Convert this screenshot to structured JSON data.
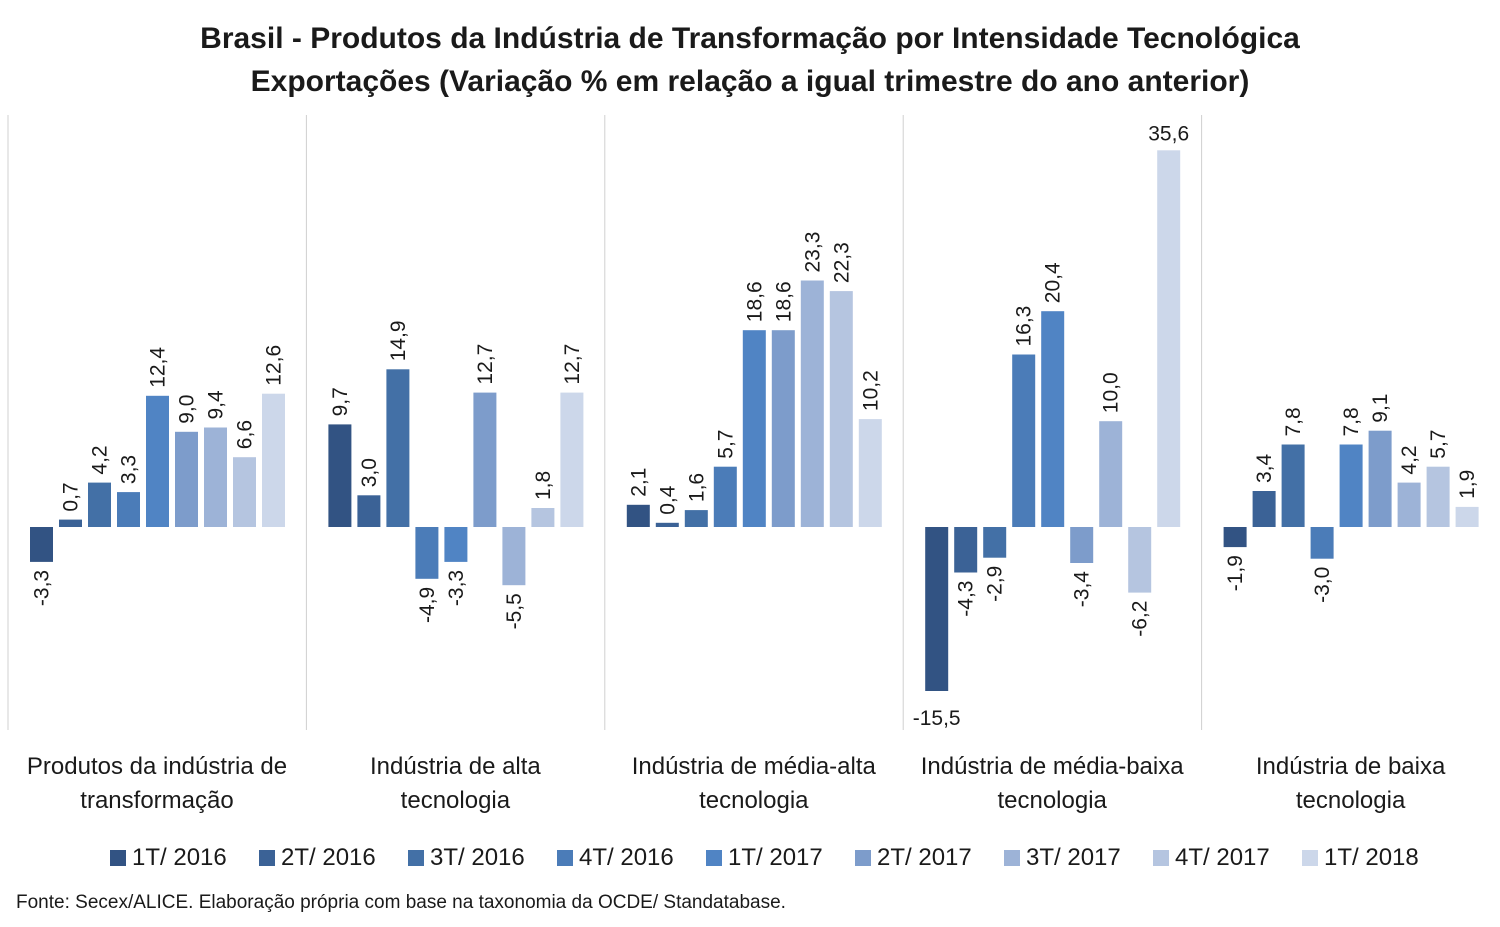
{
  "chart_data": {
    "type": "bar",
    "title": "Brasil - Produtos da Indústria de Transformação por Intensidade Tecnológica",
    "subtitle": "Exportações (Variação % em relação a igual trimestre do ano anterior)",
    "categories": [
      [
        "Produtos da indústria de",
        "transformação"
      ],
      [
        "Indústria de alta",
        "tecnologia"
      ],
      [
        "Indústria de média-alta",
        "tecnologia"
      ],
      [
        "Indústria de média-baixa",
        "tecnologia"
      ],
      [
        "Indústria de baixa",
        "tecnologia"
      ]
    ],
    "series": [
      {
        "name": "1T/ 2016",
        "color": "#325383",
        "values": [
          -3.3,
          9.7,
          2.1,
          -15.5,
          -1.9
        ],
        "labels": [
          "-3,3",
          "9,7",
          "2,1",
          "-15,5",
          "-1,9"
        ]
      },
      {
        "name": "2T/ 2016",
        "color": "#3b6296",
        "values": [
          0.7,
          3.0,
          0.4,
          -4.3,
          3.4
        ],
        "labels": [
          "0,7",
          "3,0",
          "0,4",
          "-4,3",
          "3,4"
        ]
      },
      {
        "name": "3T/ 2016",
        "color": "#4370a6",
        "values": [
          4.2,
          14.9,
          1.6,
          -2.9,
          7.8
        ],
        "labels": [
          "4,2",
          "14,9",
          "1,6",
          "-2,9",
          "7,8"
        ]
      },
      {
        "name": "4T/ 2016",
        "color": "#4b7cb8",
        "values": [
          3.3,
          -4.9,
          5.7,
          16.3,
          -3.0
        ],
        "labels": [
          "3,3",
          "-4,9",
          "5,7",
          "16,3",
          "-3,0"
        ]
      },
      {
        "name": "1T/ 2017",
        "color": "#5084c4",
        "values": [
          12.4,
          -3.3,
          18.6,
          20.4,
          7.8
        ],
        "labels": [
          "12,4",
          "-3,3",
          "18,6",
          "20,4",
          "7,8"
        ]
      },
      {
        "name": "2T/ 2017",
        "color": "#7d9ccb",
        "values": [
          9.0,
          12.7,
          18.6,
          -3.4,
          9.1
        ],
        "labels": [
          "9,0",
          "12,7",
          "18,6",
          "-3,4",
          "9,1"
        ]
      },
      {
        "name": "3T/ 2017",
        "color": "#9db3d7",
        "values": [
          9.4,
          -5.5,
          23.3,
          10.0,
          4.2
        ],
        "labels": [
          "9,4",
          "-5,5",
          "23,3",
          "10,0",
          "4,2"
        ]
      },
      {
        "name": "4T/ 2017",
        "color": "#b5c5e0",
        "values": [
          6.6,
          1.8,
          22.3,
          -6.2,
          5.7
        ],
        "labels": [
          "6,6",
          "1,8",
          "22,3",
          "-6,2",
          "5,7"
        ]
      },
      {
        "name": "1T/ 2018",
        "color": "#ccd7ea",
        "values": [
          12.6,
          12.7,
          10.2,
          35.6,
          1.9
        ],
        "labels": [
          "12,6",
          "12,7",
          "10,2",
          "35,6",
          "1,9"
        ]
      }
    ],
    "ylim": [
      -17,
      39
    ],
    "grid": false,
    "legend_position": "bottom",
    "source": "Fonte: Secex/ALICE. Elaboração própria com base na taxonomia da OCDE/ Standatabase."
  }
}
